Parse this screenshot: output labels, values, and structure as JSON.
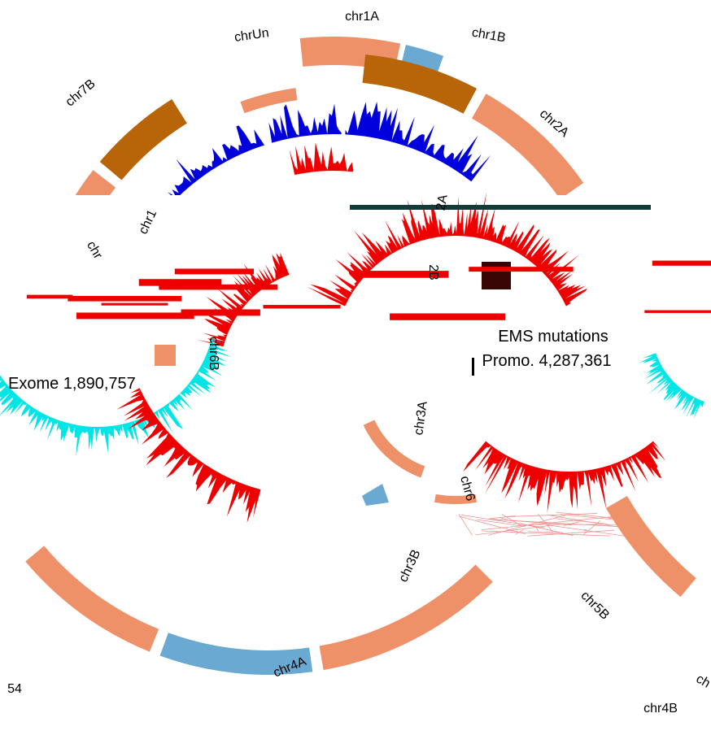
{
  "labels": {
    "chr1A": "chr1A",
    "chrUn": "chrUn",
    "chr1B": "chr1B",
    "chr7B": "chr7B",
    "chr2A": "chr2A",
    "chr1": "chr1",
    "chr": "chr",
    "inner2A": "2A",
    "inner2B": "2B",
    "chr6B": "chr6B",
    "chr3A": "chr3A",
    "chr6": "chr6",
    "chr3B": "chr3B",
    "chr5B": "chr5B",
    "chr4A": "chr4A",
    "chr4B": "chr4B",
    "ch": "ch",
    "num54": "54"
  },
  "legend": {
    "title": "EMS mutations",
    "promoter": "Promo. 4,287,361",
    "exome": "Exome 1,890,757"
  }
}
